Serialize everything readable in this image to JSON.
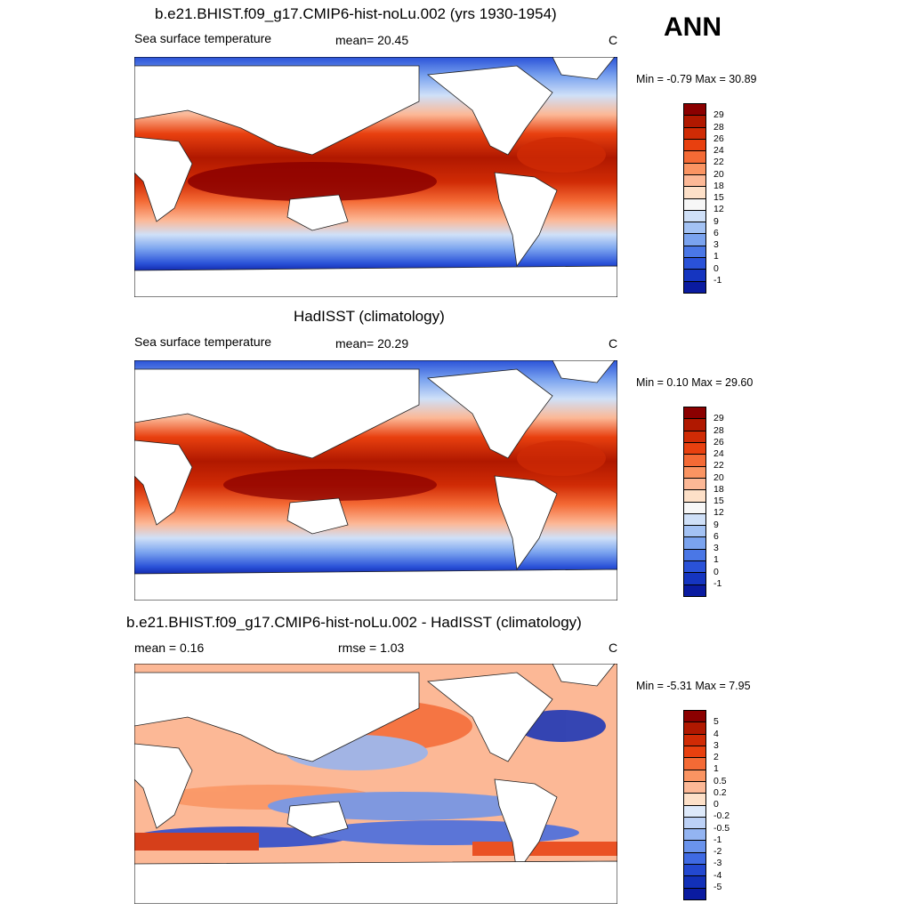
{
  "season": "ANN",
  "panels": [
    {
      "title": "b.e21.BHIST.f09_g17.CMIP6-hist-noLu.002 (yrs 1930-1954)",
      "left_label": "Sea surface temperature",
      "center_label": "mean=  20.45",
      "units": "C",
      "minmax": "Min =  -0.79 Max =  30.89"
    },
    {
      "title": "HadISST (climatology)",
      "left_label": "Sea surface temperature",
      "center_label": "mean=  20.29",
      "units": "C",
      "minmax": "Min =   0.10 Max =  29.60"
    },
    {
      "title": "b.e21.BHIST.f09_g17.CMIP6-hist-noLu.002 - HadISST (climatology)",
      "left_label": "mean =   0.16",
      "center_label": "rmse =   1.03",
      "units": "C",
      "minmax": "Min =  -5.31 Max =   7.95"
    }
  ],
  "sst_colorbar": {
    "labels": [
      "29",
      "28",
      "26",
      "24",
      "22",
      "20",
      "18",
      "15",
      "12",
      "9",
      "6",
      "3",
      "1",
      "0",
      "-1"
    ],
    "colors": [
      "#8b0000",
      "#b01800",
      "#d02b05",
      "#e8400f",
      "#f46a35",
      "#fa9462",
      "#fcb896",
      "#fde0c8",
      "#f7f7f7",
      "#cfe0f8",
      "#a3c2f4",
      "#7aa3ef",
      "#4a77e6",
      "#2a52d8",
      "#1535c0",
      "#0a1ba0"
    ]
  },
  "diff_colorbar": {
    "labels": [
      "5",
      "4",
      "3",
      "2",
      "1",
      "0.5",
      "0.2",
      "0",
      "-0.2",
      "-0.5",
      "-1",
      "-2",
      "-3",
      "-4",
      "-5"
    ],
    "colors": [
      "#8b0000",
      "#b01800",
      "#d02b05",
      "#e8400f",
      "#f46a35",
      "#fa9462",
      "#fcb896",
      "#fde0c8",
      "#dde9fa",
      "#bcd1f6",
      "#93b4f2",
      "#6a93ec",
      "#3f6ae3",
      "#2348d0",
      "#1230b8",
      "#0a1ba0"
    ]
  }
}
